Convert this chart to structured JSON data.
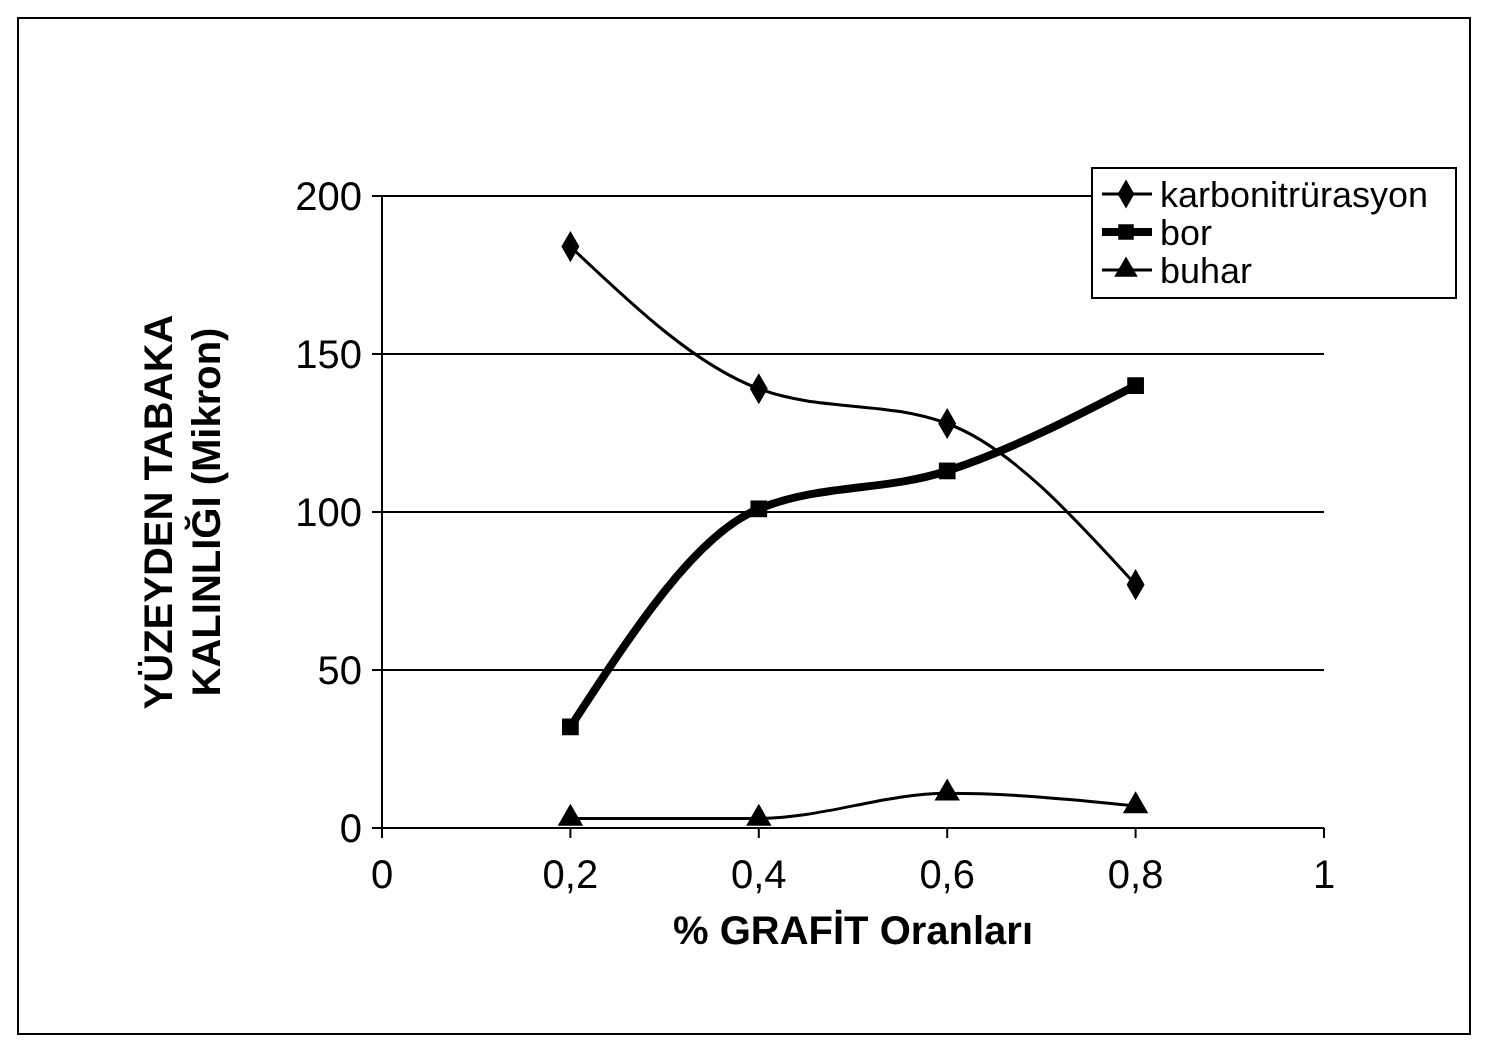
{
  "chart_data": {
    "type": "line",
    "xlabel": "% GRAFİT Oranları",
    "ylabel": "YÜZEYDEN TABAKA KALINLIĞI (Mikron)",
    "x": [
      0.2,
      0.4,
      0.6,
      0.8
    ],
    "series": [
      {
        "name": "karbonitrürasyon",
        "color": "#000000",
        "marker": "diamond",
        "values": [
          184,
          139,
          128,
          77
        ]
      },
      {
        "name": "bor",
        "color": "#000000",
        "marker": "square",
        "values": [
          32,
          101,
          113,
          140
        ]
      },
      {
        "name": "buhar",
        "color": "#000000",
        "marker": "triangle",
        "values": [
          3,
          3,
          11,
          7
        ]
      }
    ],
    "xlim": [
      0,
      1
    ],
    "xticks": [
      {
        "value": 0,
        "label": "0"
      },
      {
        "value": 0.2,
        "label": "0,2"
      },
      {
        "value": 0.4,
        "label": "0,4"
      },
      {
        "value": 0.6,
        "label": "0,6"
      },
      {
        "value": 0.8,
        "label": "0,8"
      },
      {
        "value": 1,
        "label": "1"
      }
    ],
    "ylim": [
      0,
      200
    ],
    "yticks": [
      0,
      50,
      100,
      150,
      200
    ],
    "grid": "y",
    "legend": "top right",
    "line_style": "solid"
  }
}
